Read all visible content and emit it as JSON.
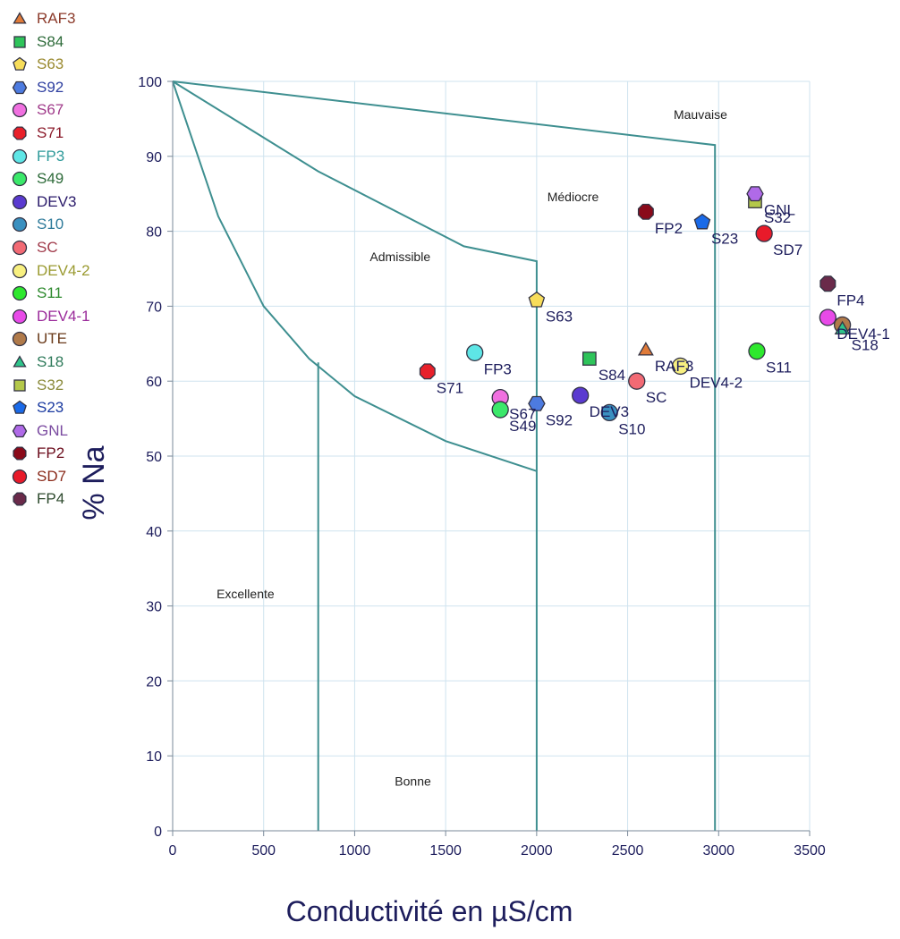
{
  "chart_data": {
    "type": "scatter",
    "xlabel": "Conductivité en µS/cm",
    "ylabel": "% Na",
    "xlim": [
      0,
      3500
    ],
    "ylim": [
      0,
      100
    ],
    "x_ticks": [
      0,
      500,
      1000,
      1500,
      2000,
      2500,
      3000,
      3500
    ],
    "y_ticks": [
      0,
      10,
      20,
      30,
      40,
      50,
      60,
      70,
      80,
      90,
      100
    ],
    "grid": true,
    "legend_position": "left",
    "zones": [
      {
        "name": "Mauvaise",
        "x": 2900,
        "y": 95
      },
      {
        "name": "Médiocre",
        "x": 2200,
        "y": 84
      },
      {
        "name": "Admissible",
        "x": 1250,
        "y": 76
      },
      {
        "name": "Excellente",
        "x": 400,
        "y": 31
      },
      {
        "name": "Bonne",
        "x": 1320,
        "y": 6
      }
    ],
    "boundaries": [
      {
        "points": [
          [
            0,
            100
          ],
          [
            2980,
            91.5
          ],
          [
            2980,
            0
          ]
        ]
      },
      {
        "points": [
          [
            0,
            100
          ],
          [
            800,
            88
          ],
          [
            1600,
            78
          ],
          [
            2000,
            76
          ],
          [
            2000,
            0
          ]
        ]
      },
      {
        "points": [
          [
            0,
            100
          ],
          [
            250,
            82
          ],
          [
            500,
            70
          ],
          [
            750,
            63
          ],
          [
            1000,
            58
          ],
          [
            1500,
            52
          ],
          [
            2000,
            48
          ]
        ]
      },
      {
        "points": [
          [
            800,
            62.5
          ],
          [
            800,
            0
          ]
        ]
      }
    ],
    "series": [
      {
        "name": "RAF3",
        "marker": "triangle",
        "color": "#e07b39",
        "legend_text_color": "#8b3a2a",
        "x": 2600,
        "y": 64.2,
        "point_label": "RAF3"
      },
      {
        "name": "S84",
        "marker": "square",
        "color": "#2ec45a",
        "legend_text_color": "#2e6b3a",
        "x": 2290,
        "y": 63,
        "point_label": "S84"
      },
      {
        "name": "S63",
        "marker": "pentagon",
        "color": "#f7dd5a",
        "legend_text_color": "#9a8a30",
        "x": 2000,
        "y": 70.8,
        "point_label": "S63"
      },
      {
        "name": "S92",
        "marker": "hexagon",
        "color": "#4d7be0",
        "legend_text_color": "#2e3fa0",
        "x": 2000,
        "y": 57,
        "point_label": "S92"
      },
      {
        "name": "S67",
        "marker": "circle",
        "color": "#f070e0",
        "legend_text_color": "#a03a8a",
        "x": 1800,
        "y": 57.8,
        "point_label": "S67"
      },
      {
        "name": "S71",
        "marker": "octagon",
        "color": "#e8202a",
        "legend_text_color": "#8b1a2a",
        "x": 1400,
        "y": 61.3,
        "point_label": "S71"
      },
      {
        "name": "FP3",
        "marker": "circle",
        "color": "#5ee6e6",
        "legend_text_color": "#2e9a9a",
        "x": 1660,
        "y": 63.8,
        "point_label": "FP3"
      },
      {
        "name": "S49",
        "marker": "circle",
        "color": "#3be86a",
        "legend_text_color": "#2e6b3a",
        "x": 1800,
        "y": 56.2,
        "point_label": "S49"
      },
      {
        "name": "DEV3",
        "marker": "circle",
        "color": "#5a3ad0",
        "legend_text_color": "#2a1a6a",
        "x": 2240,
        "y": 58.1,
        "point_label": "DEV3"
      },
      {
        "name": "S10",
        "marker": "circle",
        "color": "#3a90c0",
        "legend_text_color": "#2e7a9a",
        "x": 2400,
        "y": 55.8,
        "point_label": "S10"
      },
      {
        "name": "SC",
        "marker": "circle",
        "color": "#f26a74",
        "legend_text_color": "#a03a4a",
        "x": 2550,
        "y": 60,
        "point_label": "SC"
      },
      {
        "name": "DEV4-2",
        "marker": "circle",
        "color": "#f8f080",
        "legend_text_color": "#9a9a30",
        "x": 2790,
        "y": 62,
        "point_label": "DEV4-2"
      },
      {
        "name": "S11",
        "marker": "circle",
        "color": "#2ee82e",
        "legend_text_color": "#2e8a2e",
        "x": 3210,
        "y": 64,
        "point_label": "S11"
      },
      {
        "name": "DEV4-1",
        "marker": "circle",
        "color": "#e84ae8",
        "legend_text_color": "#9a2a9a",
        "x": 3600,
        "y": 68.5,
        "point_label": "DEV4-1"
      },
      {
        "name": "UTE",
        "marker": "circle",
        "color": "#b07a4a",
        "legend_text_color": "#6a3a1a",
        "x": 3680,
        "y": 67.5,
        "point_label": ""
      },
      {
        "name": "S18",
        "marker": "triangle",
        "color": "#2ec48a",
        "legend_text_color": "#2e7a5a",
        "x": 3680,
        "y": 67,
        "point_label": "S18"
      },
      {
        "name": "S32",
        "marker": "square",
        "color": "#b4c84a",
        "legend_text_color": "#8a8a3a",
        "x": 3200,
        "y": 84,
        "point_label": "S32"
      },
      {
        "name": "S23",
        "marker": "pentagon",
        "color": "#1a6ae8",
        "legend_text_color": "#1a3aa0",
        "x": 2910,
        "y": 81.2,
        "point_label": "S23"
      },
      {
        "name": "GNL",
        "marker": "hexagon",
        "color": "#b06ae8",
        "legend_text_color": "#7a4aa0",
        "x": 3200,
        "y": 85,
        "point_label": "GNL"
      },
      {
        "name": "FP2",
        "marker": "octagon",
        "color": "#8a0a1a",
        "legend_text_color": "#6a0a1a",
        "x": 2600,
        "y": 82.6,
        "point_label": "FP2"
      },
      {
        "name": "SD7",
        "marker": "circle",
        "color": "#e81a2a",
        "legend_text_color": "#8a2a1a",
        "x": 3250,
        "y": 79.7,
        "point_label": "SD7"
      },
      {
        "name": "FP4",
        "marker": "octagon",
        "color": "#6a2a4a",
        "legend_text_color": "#2e4a2e",
        "x": 3600,
        "y": 73,
        "point_label": "FP4"
      }
    ]
  }
}
